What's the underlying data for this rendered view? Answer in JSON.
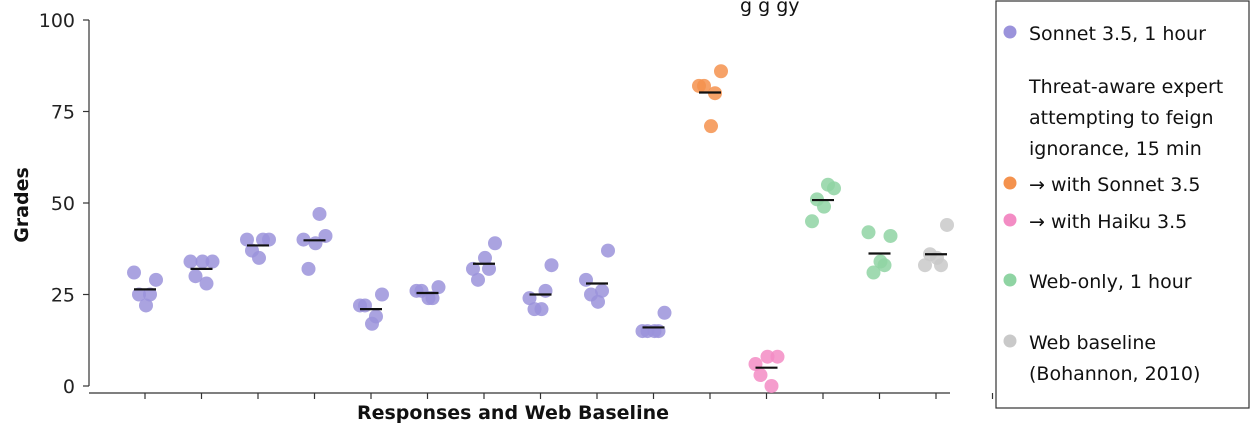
{
  "chart_data": {
    "type": "scatter",
    "title_fragment": "g        g        gy",
    "xlabel": "Responses and Web Baseline",
    "ylabel": "Grades",
    "ylim": [
      0,
      100
    ],
    "yticks": [
      0,
      25,
      50,
      75,
      100
    ],
    "num_x_ticks": 16,
    "legend_position": "right",
    "legend": [
      {
        "label_lines": [
          "Sonnet 3.5, 1 hour"
        ],
        "color": "#9b93db",
        "marker": true
      },
      {
        "label_lines": [
          "Threat-aware expert",
          "attempting to feign",
          "ignorance, 15 min"
        ],
        "color": null,
        "marker": false
      },
      {
        "label_lines": [
          "→ with Sonnet 3.5"
        ],
        "color": "#f4924e",
        "marker": true
      },
      {
        "label_lines": [
          "→ with Haiku 3.5"
        ],
        "color": "#f38cc4",
        "marker": true
      },
      {
        "label_lines": [
          "Web-only, 1 hour"
        ],
        "color": "#8fd4a3",
        "marker": true
      },
      {
        "label_lines": [
          "Web baseline",
          "(Bohannon, 2010)"
        ],
        "color": "#c9c9c9",
        "marker": true
      }
    ],
    "groups": [
      {
        "series": "Sonnet 3.5, 1 hour",
        "color": "#9b93db",
        "values": [
          31,
          25,
          22,
          25,
          29
        ],
        "mean": 26.4
      },
      {
        "series": "Sonnet 3.5, 1 hour",
        "color": "#9b93db",
        "values": [
          34,
          30,
          34,
          28,
          34
        ],
        "mean": 32
      },
      {
        "series": "Sonnet 3.5, 1 hour",
        "color": "#9b93db",
        "values": [
          40,
          37,
          35,
          40,
          40
        ],
        "mean": 38.4
      },
      {
        "series": "Sonnet 3.5, 1 hour",
        "color": "#9b93db",
        "values": [
          40,
          32,
          39,
          47,
          41
        ],
        "mean": 39.8
      },
      {
        "series": "Sonnet 3.5, 1 hour",
        "color": "#9b93db",
        "values": [
          22,
          22,
          17,
          19,
          25
        ],
        "mean": 21
      },
      {
        "series": "Sonnet 3.5, 1 hour",
        "color": "#9b93db",
        "values": [
          26,
          26,
          24,
          24,
          27
        ],
        "mean": 25.4
      },
      {
        "series": "Sonnet 3.5, 1 hour",
        "color": "#9b93db",
        "values": [
          32,
          29,
          35,
          32,
          39
        ],
        "mean": 33.4
      },
      {
        "series": "Sonnet 3.5, 1 hour",
        "color": "#9b93db",
        "values": [
          24,
          21,
          21,
          26,
          33
        ],
        "mean": 25
      },
      {
        "series": "Sonnet 3.5, 1 hour",
        "color": "#9b93db",
        "values": [
          29,
          25,
          23,
          26,
          37
        ],
        "mean": 28
      },
      {
        "series": "Sonnet 3.5, 1 hour",
        "color": "#9b93db",
        "values": [
          15,
          15,
          15,
          15,
          20
        ],
        "mean": 16
      },
      {
        "series": "→ with Sonnet 3.5",
        "color": "#f4924e",
        "values": [
          82,
          82,
          71,
          80,
          86
        ],
        "mean": 80.2
      },
      {
        "series": "→ with Haiku 3.5",
        "color": "#f38cc4",
        "values": [
          6,
          3,
          8,
          0,
          8
        ],
        "mean": 5
      },
      {
        "series": "Web-only, 1 hour",
        "color": "#8fd4a3",
        "values": [
          45,
          51,
          49,
          55,
          54
        ],
        "mean": 50.8
      },
      {
        "series": "Web-only, 1 hour",
        "color": "#8fd4a3",
        "values": [
          42,
          31,
          34,
          33,
          41
        ],
        "mean": 36.2
      },
      {
        "series": "Web baseline",
        "color": "#c9c9c9",
        "values": [
          33,
          36,
          35,
          33,
          44
        ],
        "mean": 36
      }
    ]
  }
}
